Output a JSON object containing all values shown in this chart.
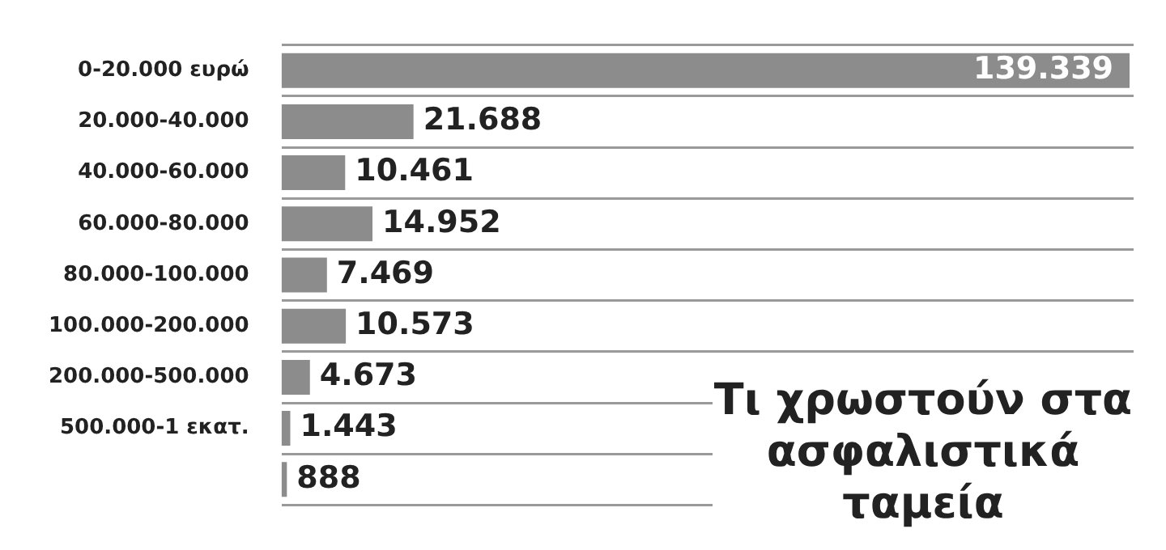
{
  "chart_data": {
    "type": "bar",
    "orientation": "horizontal",
    "title": "Τι χρωστούν στα ασφαλιστικά ταμεία",
    "categories": [
      "0-20.000 ευρώ",
      "20.000-40.000",
      "40.000-60.000",
      "60.000-80.000",
      "80.000-100.000",
      "100.000-200.000",
      "200.000-500.000",
      "500.000-1 εκατ.",
      null
    ],
    "values": [
      139339,
      21688,
      10461,
      14952,
      7469,
      10573,
      4673,
      1443,
      888
    ],
    "value_labels": [
      "139.339",
      "21.688",
      "10.461",
      "14.952",
      "7.469",
      "10.573",
      "4.673",
      "1.443",
      "888"
    ],
    "color": "#8c8c8c",
    "grid": "y",
    "legend": false
  }
}
